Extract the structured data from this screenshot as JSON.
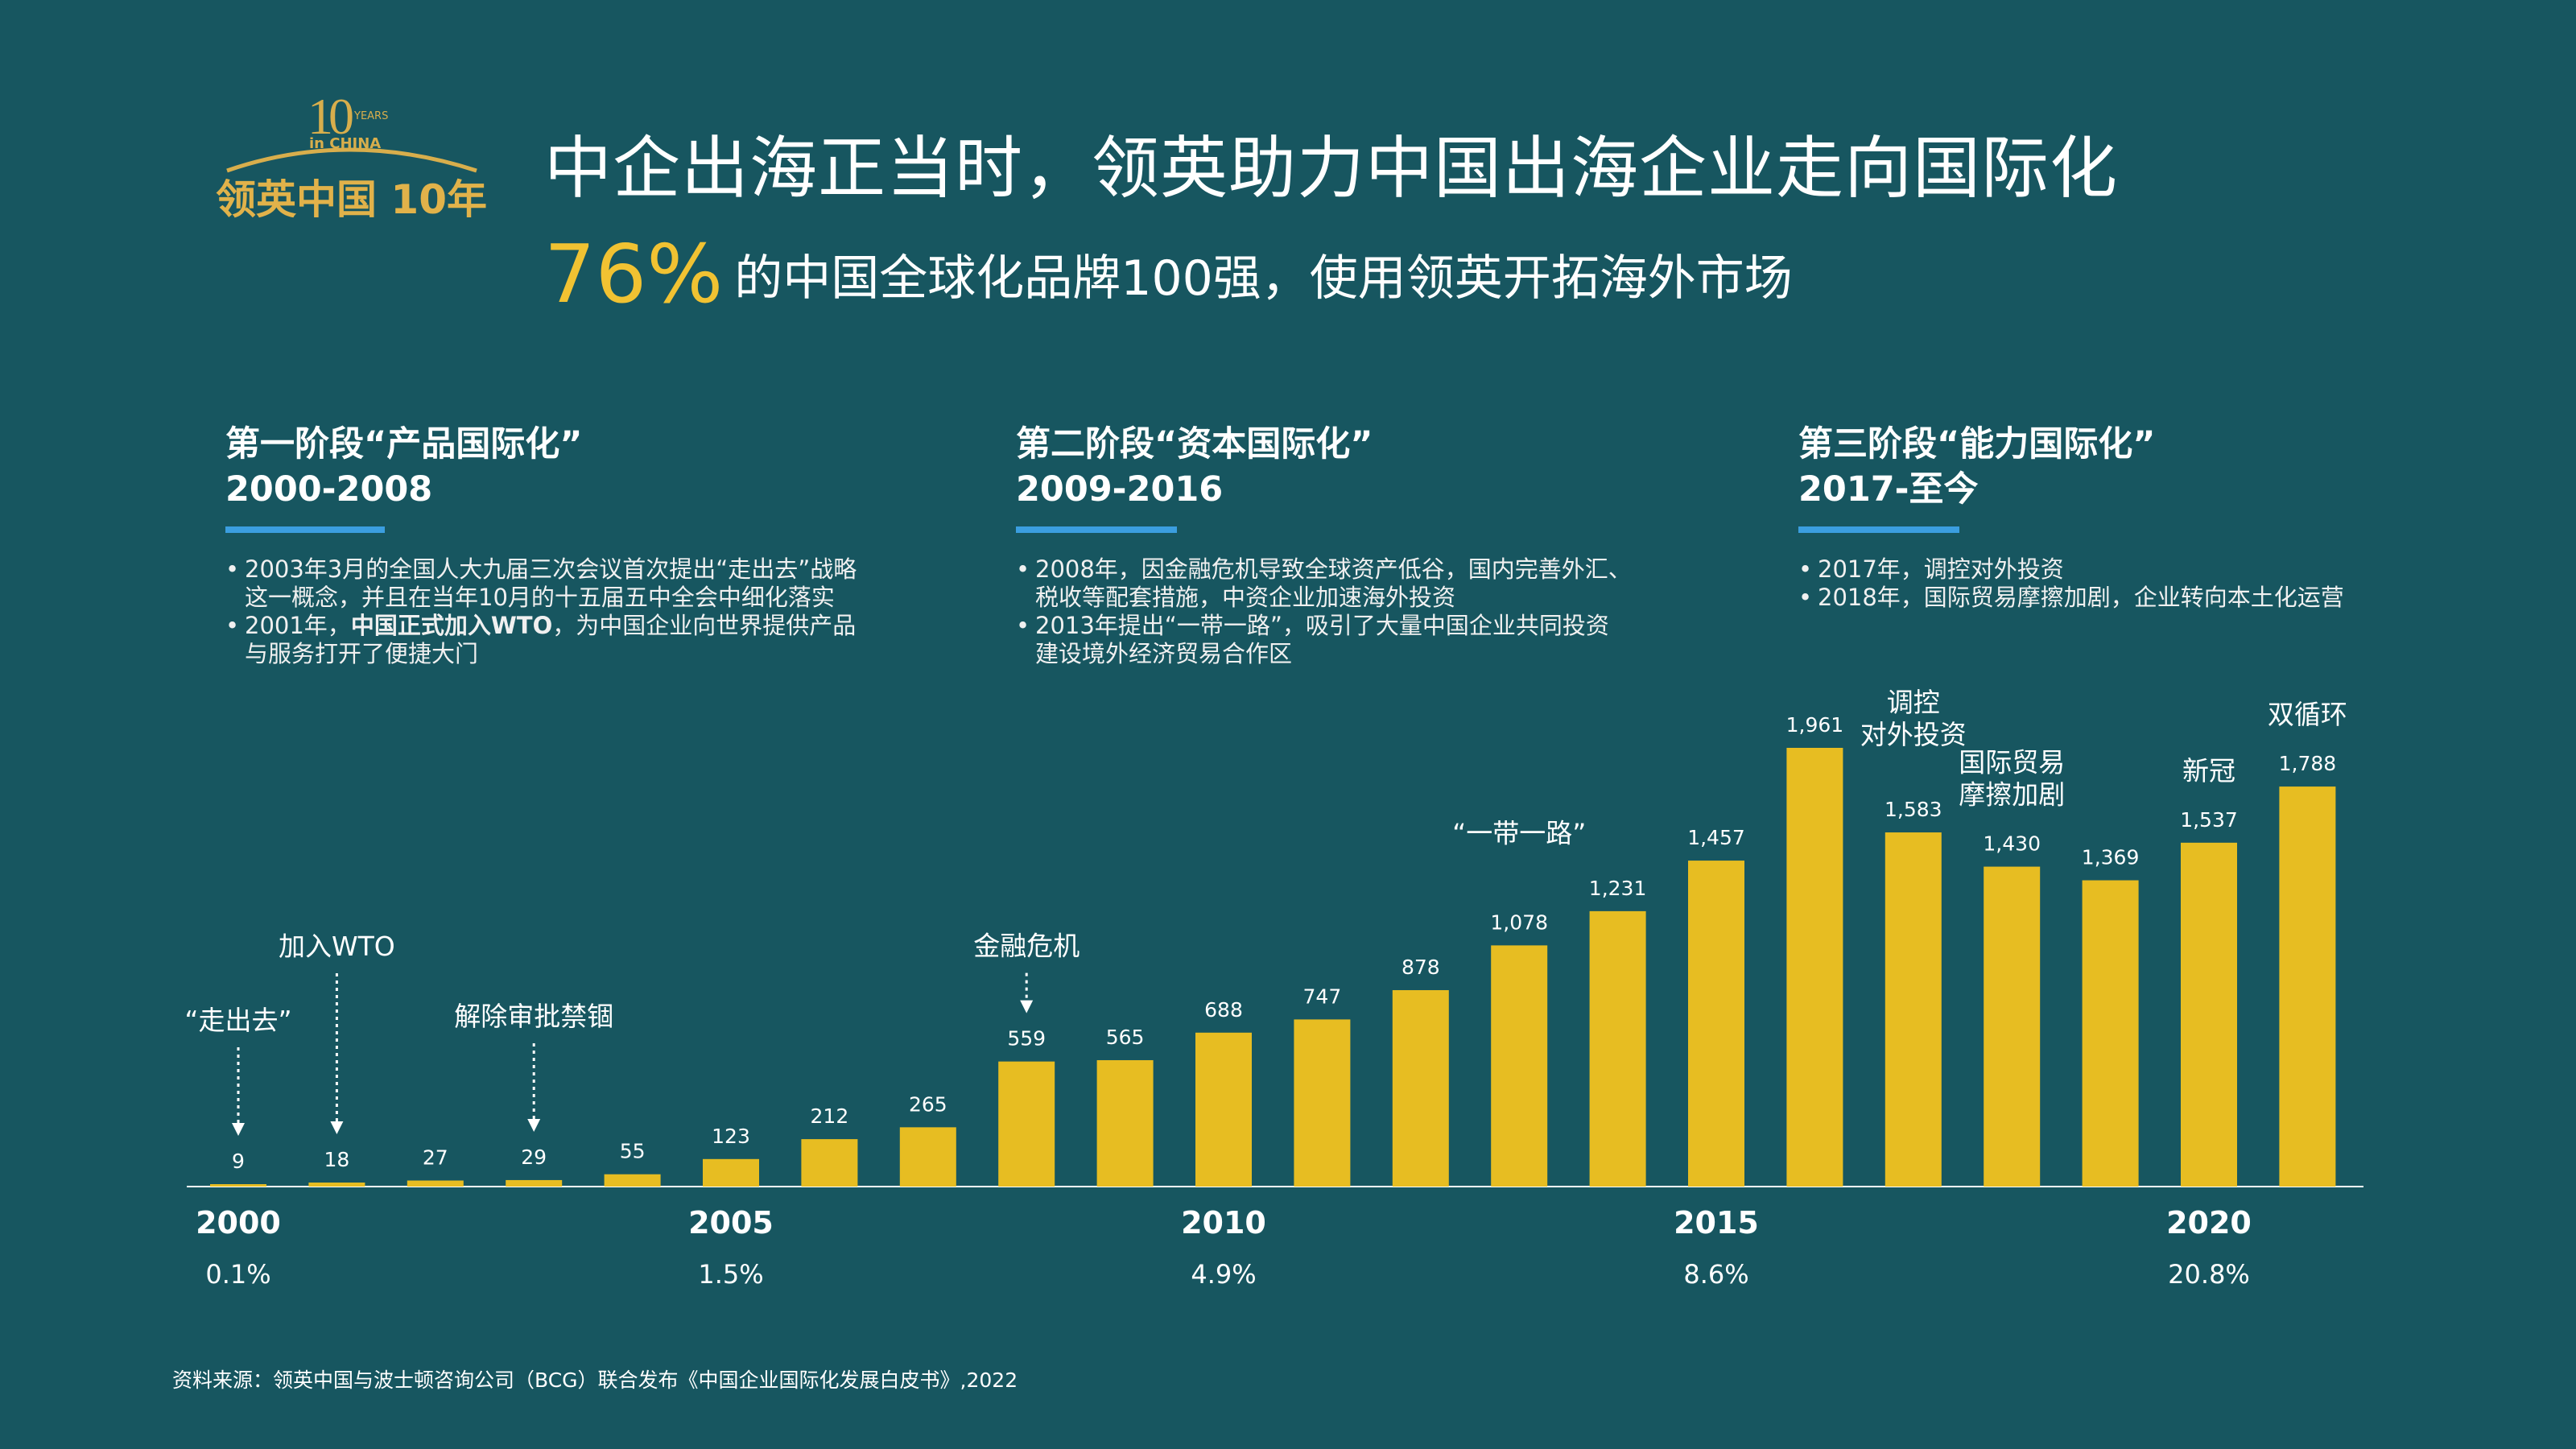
{
  "logo": {
    "number": "10",
    "years": "YEARS",
    "china": "in CHINA",
    "text": "领英中国 10年"
  },
  "title": "中企出海正当时，领英助力中国出海企业走向国际化",
  "subtitle": {
    "percent": "76%",
    "text": "的中国全球化品牌100强，使用领英开拓海外市场"
  },
  "phases": [
    {
      "title": "第一阶段“产品国际化”",
      "years": "2000-2008",
      "bullets": [
        [
          "2003年3月的全国人大九届三次会议首次提出“走出去”战略",
          "这一概念，并且在当年10月的十五届五中全会中细化落实"
        ],
        [
          "2001年，中国正式加入WTO，为中国企业向世界提供产品",
          "与服务打开了便捷大门"
        ]
      ]
    },
    {
      "title": "第二阶段“资本国际化”",
      "years": "2009-2016",
      "bullets": [
        [
          "2008年，因金融危机导致全球资产低谷，国内完善外汇、",
          "税收等配套措施，中资企业加速海外投资"
        ],
        [
          "2013年提出“一带一路”，吸引了大量中国企业共同投资",
          "建设境外经济贸易合作区"
        ]
      ]
    },
    {
      "title": "第三阶段“能力国际化”",
      "years": "2017-至今",
      "bullets": [
        [
          "2017年，调控对外投资"
        ],
        [
          "2018年，国际贸易摩擦加剧，企业转向本土化运营"
        ]
      ]
    }
  ],
  "chart_data": {
    "type": "bar",
    "categories": [
      "2000",
      "2001",
      "2002",
      "2003",
      "2004",
      "2005",
      "2006",
      "2007",
      "2008",
      "2009",
      "2010",
      "2011",
      "2012",
      "2013",
      "2014",
      "2015",
      "2016",
      "2017",
      "2018",
      "2019",
      "2020",
      "2021"
    ],
    "values": [
      9,
      18,
      27,
      29,
      55,
      123,
      212,
      265,
      559,
      565,
      688,
      747,
      878,
      1078,
      1231,
      1457,
      1961,
      1583,
      1430,
      1369,
      1537,
      1788
    ],
    "value_labels": [
      "9",
      "18",
      "27",
      "29",
      "55",
      "123",
      "212",
      "265",
      "559",
      "565",
      "688",
      "747",
      "878",
      "1,078",
      "1,231",
      "1,457",
      "1,961",
      "1,583",
      "1,430",
      "1,369",
      "1,537",
      "1,788"
    ],
    "ylim": [
      0,
      1961
    ],
    "x_ticks": [
      {
        "index": 0,
        "label": "2000",
        "share": "0.1%"
      },
      {
        "index": 5,
        "label": "2005",
        "share": "1.5%"
      },
      {
        "index": 10,
        "label": "2010",
        "share": "4.9%"
      },
      {
        "index": 15,
        "label": "2015",
        "share": "8.6%"
      },
      {
        "index": 20,
        "label": "2020",
        "share": "20.8%"
      }
    ],
    "annotations": [
      {
        "index": 0,
        "lines": [
          "“走出去”"
        ],
        "arrow": true
      },
      {
        "index": 1,
        "lines": [
          "加入WTO"
        ],
        "arrow": true
      },
      {
        "index": 3,
        "lines": [
          "解除审批禁锢"
        ],
        "arrow": true
      },
      {
        "index": 8,
        "lines": [
          "金融危机"
        ],
        "arrow": true
      },
      {
        "index": 13,
        "lines": [
          "“一带一路”"
        ],
        "arrow": false
      },
      {
        "index": 17,
        "lines": [
          "调控",
          "对外投资"
        ],
        "arrow": false
      },
      {
        "index": 18,
        "lines": [
          "国际贸易",
          "摩擦加剧"
        ],
        "arrow": false
      },
      {
        "index": 20,
        "lines": [
          "新冠"
        ],
        "arrow": false
      },
      {
        "index": 21,
        "lines": [
          "双循环"
        ],
        "arrow": false
      }
    ],
    "bar_color": "#e7bd22",
    "title": "",
    "xlabel": "",
    "ylabel": ""
  },
  "footer": "资料来源：领英中国与波士顿咨询公司（BCG）联合发布《中国企业国际化发展白皮书》,2022"
}
